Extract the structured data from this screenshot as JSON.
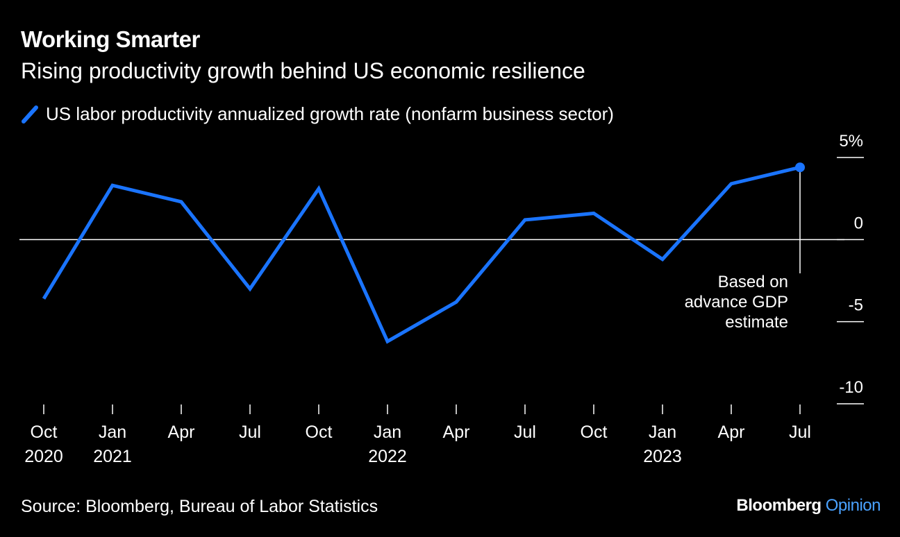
{
  "header": {
    "title": "Working Smarter",
    "subtitle": "Rising productivity growth behind US economic resilience"
  },
  "legend": {
    "label": "US labor productivity annualized growth rate (nonfarm business sector)"
  },
  "footer": {
    "source": "Source: Bloomberg, Bureau of Labor Statistics",
    "brand_main": "Bloomberg",
    "brand_sub": "Opinion"
  },
  "colors": {
    "background": "#000000",
    "text": "#ffffff",
    "series": "#1a74ff",
    "brand_accent": "#4aa2ff"
  },
  "chart_data": {
    "type": "line",
    "title": "Working Smarter",
    "subtitle": "Rising productivity growth behind US economic resilience",
    "x": [
      "2020-10",
      "2021-01",
      "2021-04",
      "2021-07",
      "2021-10",
      "2022-01",
      "2022-04",
      "2022-07",
      "2022-10",
      "2023-01",
      "2023-04",
      "2023-07"
    ],
    "x_tick_labels": [
      {
        "month": "Oct",
        "year": "2020"
      },
      {
        "month": "Jan",
        "year": "2021"
      },
      {
        "month": "Apr",
        "year": ""
      },
      {
        "month": "Jul",
        "year": ""
      },
      {
        "month": "Oct",
        "year": ""
      },
      {
        "month": "Jan",
        "year": "2022"
      },
      {
        "month": "Apr",
        "year": ""
      },
      {
        "month": "Jul",
        "year": ""
      },
      {
        "month": "Oct",
        "year": ""
      },
      {
        "month": "Jan",
        "year": "2023"
      },
      {
        "month": "Apr",
        "year": ""
      },
      {
        "month": "Jul",
        "year": ""
      }
    ],
    "series": [
      {
        "name": "US labor productivity annualized growth rate (nonfarm business sector)",
        "values": [
          -3.6,
          3.3,
          2.3,
          -3.0,
          3.1,
          -6.2,
          -3.8,
          1.2,
          1.6,
          -1.2,
          3.4,
          4.4
        ]
      }
    ],
    "y_ticks": [
      {
        "value": 5,
        "label": "5%"
      },
      {
        "value": 0,
        "label": "0"
      },
      {
        "value": -5,
        "label": "-5"
      },
      {
        "value": -10,
        "label": "-10"
      }
    ],
    "ylim": [
      -10,
      5
    ],
    "xlabel": "",
    "ylabel": "",
    "grid": false,
    "legend_position": "top-left",
    "annotation": {
      "point_index": 11,
      "lines": [
        "Based on",
        "advance GDP",
        "estimate"
      ]
    }
  }
}
